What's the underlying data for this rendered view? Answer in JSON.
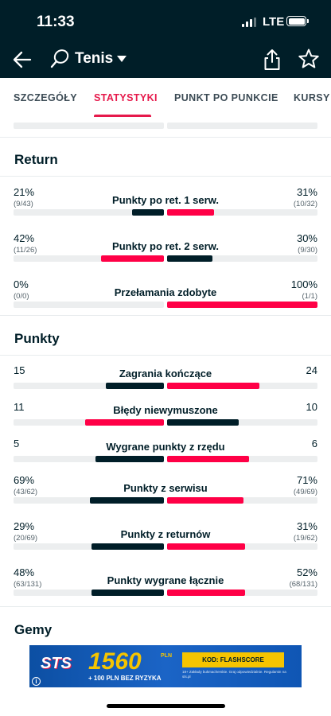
{
  "status": {
    "time": "11:33",
    "network": "LTE"
  },
  "header": {
    "title": "Tenis"
  },
  "tabs": [
    "SZCZEGÓŁY",
    "STATYSTYKI",
    "PUNKT PO PUNKCIE",
    "KURSY"
  ],
  "sections": {
    "return": {
      "title": "Return",
      "rows": [
        {
          "label": "Punkty po ret. 1 serw.",
          "home": "21%",
          "home_sub": "(9/43)",
          "away": "31%",
          "away_sub": "(10/32)",
          "home_frac": 0.21,
          "away_frac": 0.31,
          "leader": "away"
        },
        {
          "label": "Punkty po ret. 2 serw.",
          "home": "42%",
          "home_sub": "(11/26)",
          "away": "30%",
          "away_sub": "(9/30)",
          "home_frac": 0.42,
          "away_frac": 0.3,
          "leader": "home"
        },
        {
          "label": "Przełamania zdobyte",
          "home": "0%",
          "home_sub": "(0/0)",
          "away": "100%",
          "away_sub": "(1/1)",
          "home_frac": 0.0,
          "away_frac": 1.0,
          "leader": "away"
        }
      ]
    },
    "points": {
      "title": "Punkty",
      "rows": [
        {
          "label": "Zagrania kończące",
          "home": "15",
          "home_sub": "",
          "away": "24",
          "away_sub": "",
          "home_frac": 0.385,
          "away_frac": 0.615,
          "leader": "away"
        },
        {
          "label": "Błędy niewymuszone",
          "home": "11",
          "home_sub": "",
          "away": "10",
          "away_sub": "",
          "home_frac": 0.524,
          "away_frac": 0.476,
          "leader": "home"
        },
        {
          "label": "Wygrane punkty z rzędu",
          "home": "5",
          "home_sub": "",
          "away": "6",
          "away_sub": "",
          "home_frac": 0.455,
          "away_frac": 0.545,
          "leader": "away"
        },
        {
          "label": "Punkty z serwisu",
          "home": "69%",
          "home_sub": "(43/62)",
          "away": "71%",
          "away_sub": "(49/69)",
          "home_frac": 0.49,
          "away_frac": 0.51,
          "leader": "away"
        },
        {
          "label": "Punkty z returnów",
          "home": "29%",
          "home_sub": "(20/69)",
          "away": "31%",
          "away_sub": "(19/62)",
          "home_frac": 0.48,
          "away_frac": 0.52,
          "leader": "away"
        },
        {
          "label": "Punkty wygrane łącznie",
          "home": "48%",
          "home_sub": "(63/131)",
          "away": "52%",
          "away_sub": "(68/131)",
          "home_frac": 0.48,
          "away_frac": 0.52,
          "leader": "away"
        }
      ]
    },
    "games": {
      "title": "Gemy"
    }
  },
  "ad": {
    "logo": "STS",
    "amount": "1560",
    "currency": "PLN",
    "bonus": "+ 100 PLN BEZ RYZYKA",
    "code": "KOD: FLASHSCORE",
    "fine_print": "18+ Zakłady bukmacherskie. Graj odpowiedzialnie. Regulamin na sts.pl",
    "info": "i"
  },
  "colors": {
    "dark": "#001e28",
    "accent": "#ff0046",
    "track": "#eceeef"
  }
}
